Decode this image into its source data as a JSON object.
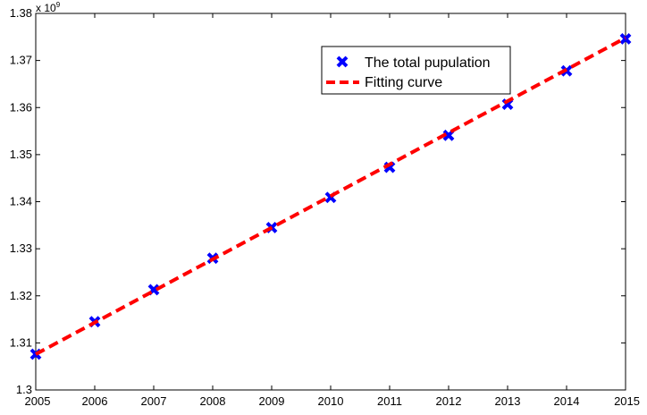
{
  "chart_data": {
    "type": "line",
    "title": "",
    "xlabel": "",
    "ylabel": "",
    "y_multiplier_base": "x 10",
    "y_multiplier_exponent": "9",
    "xlim": [
      2005,
      2015
    ],
    "ylim": [
      1.3,
      1.38
    ],
    "x_ticks": [
      "2005",
      "2006",
      "2007",
      "2008",
      "2009",
      "2010",
      "2011",
      "2012",
      "2013",
      "2014",
      "2015"
    ],
    "y_ticks": [
      "1.3",
      "1.31",
      "1.32",
      "1.33",
      "1.34",
      "1.35",
      "1.36",
      "1.37",
      "1.38"
    ],
    "grid": false,
    "legend_position": "top-right",
    "series": [
      {
        "name": "The total pupulation",
        "style": "markers",
        "marker": "x",
        "color": "#0000ff",
        "x": [
          2005,
          2006,
          2007,
          2008,
          2009,
          2010,
          2011,
          2012,
          2013,
          2014,
          2015
        ],
        "y": [
          1.3076,
          1.3145,
          1.3213,
          1.328,
          1.3345,
          1.3409,
          1.3473,
          1.3541,
          1.3607,
          1.3678,
          1.3746
        ]
      },
      {
        "name": "Fitting curve",
        "style": "dashed-line",
        "color": "#ff0000",
        "x": [
          2005,
          2015
        ],
        "y": [
          1.3076,
          1.3748
        ]
      }
    ]
  }
}
